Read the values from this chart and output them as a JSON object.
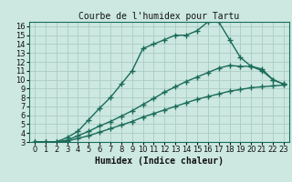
{
  "title": "Courbe de l'humidex pour Tartu",
  "xlabel": "Humidex (Indice chaleur)",
  "background_color": "#cce8e0",
  "grid_color": "#aaccc4",
  "line_color": "#1a6b5a",
  "xlim": [
    -0.5,
    23.5
  ],
  "ylim": [
    3,
    16.5
  ],
  "xticks": [
    0,
    1,
    2,
    3,
    4,
    5,
    6,
    7,
    8,
    9,
    10,
    11,
    12,
    13,
    14,
    15,
    16,
    17,
    18,
    19,
    20,
    21,
    22,
    23
  ],
  "yticks": [
    3,
    4,
    5,
    6,
    7,
    8,
    9,
    10,
    11,
    12,
    13,
    14,
    15,
    16
  ],
  "series1_x": [
    0,
    1,
    2,
    3,
    4,
    5,
    6,
    7,
    8,
    9,
    10,
    11,
    12,
    13,
    14,
    15,
    16,
    17,
    18,
    19,
    20,
    21,
    22,
    23
  ],
  "series1_y": [
    3,
    3,
    3,
    3.5,
    4.2,
    5.5,
    6.8,
    8.0,
    9.5,
    11.0,
    13.5,
    14.0,
    14.5,
    15.0,
    15.0,
    15.5,
    16.5,
    16.5,
    14.5,
    12.5,
    11.5,
    11.0,
    10.0,
    9.5
  ],
  "series2_x": [
    0,
    1,
    2,
    3,
    4,
    5,
    6,
    7,
    8,
    9,
    10,
    11,
    12,
    13,
    14,
    15,
    16,
    17,
    18,
    19,
    20,
    21,
    22,
    23
  ],
  "series2_y": [
    3,
    3,
    3,
    3.2,
    3.7,
    4.2,
    4.8,
    5.3,
    5.9,
    6.5,
    7.2,
    7.9,
    8.6,
    9.2,
    9.8,
    10.3,
    10.8,
    11.3,
    11.6,
    11.5,
    11.5,
    11.2,
    10.0,
    9.5
  ],
  "series3_x": [
    0,
    1,
    2,
    3,
    4,
    5,
    6,
    7,
    8,
    9,
    10,
    11,
    12,
    13,
    14,
    15,
    16,
    17,
    18,
    19,
    20,
    21,
    22,
    23
  ],
  "series3_y": [
    3,
    3,
    3,
    3.1,
    3.4,
    3.7,
    4.1,
    4.5,
    4.9,
    5.3,
    5.8,
    6.2,
    6.6,
    7.0,
    7.4,
    7.8,
    8.1,
    8.4,
    8.7,
    8.9,
    9.1,
    9.2,
    9.3,
    9.4
  ],
  "marker": "+",
  "markersize": 4,
  "linewidth": 1.0,
  "xlabel_fontsize": 7,
  "tick_fontsize": 6,
  "title_fontsize": 7
}
